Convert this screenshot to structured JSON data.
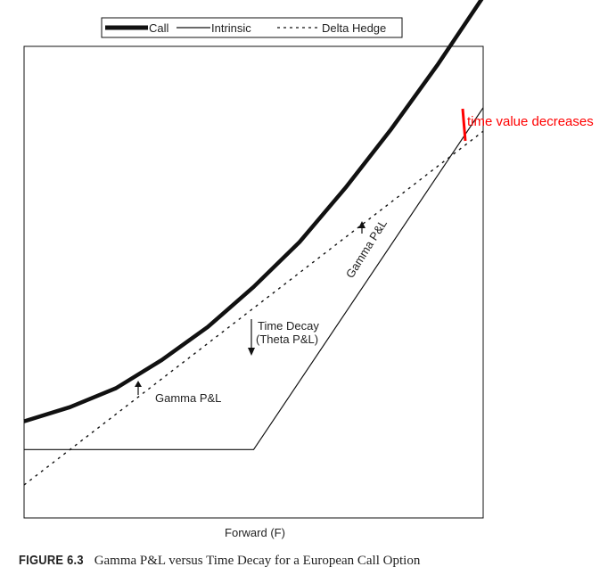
{
  "chart_data": {
    "type": "line",
    "title": "",
    "xlabel": "Forward (F)",
    "ylabel": "",
    "xlim": [
      0,
      100
    ],
    "ylim": [
      0,
      100
    ],
    "grid": false,
    "legend": {
      "placement": "top-center",
      "entries": [
        "Call",
        "Intrinsic",
        "Delta Hedge"
      ]
    },
    "series": [
      {
        "name": "Call",
        "style": "thick-solid",
        "x": [
          0,
          10,
          20,
          30,
          40,
          50,
          60,
          70,
          80,
          90,
          100
        ],
        "y": [
          20.5,
          23.5,
          27.5,
          33.5,
          40.5,
          49,
          58.5,
          70,
          82.5,
          96,
          110.5
        ]
      },
      {
        "name": "Intrinsic",
        "style": "thin-solid",
        "x": [
          0,
          50,
          100
        ],
        "y": [
          14.5,
          14.5,
          87
        ]
      },
      {
        "name": "Delta Hedge",
        "style": "dotted",
        "x": [
          0,
          100
        ],
        "y": [
          7,
          82
        ]
      }
    ],
    "annotations": [
      {
        "text": "Gamma P&L",
        "x": 28,
        "y": 28
      },
      {
        "text": "Time Decay",
        "x": 50,
        "y": 45
      },
      {
        "text": "(Theta P&L)",
        "x": 50,
        "y": 41
      },
      {
        "text": "Gamma P&L",
        "x": 73,
        "y": 58
      },
      {
        "text": "time value decreases",
        "x": 96,
        "y": 93,
        "color": "#ff0000"
      }
    ]
  },
  "caption": {
    "figure_label": "FIGURE 6.3",
    "text": "Gamma P&L versus Time Decay for a European Call Option"
  },
  "colors": {
    "ink": "#111111",
    "highlight": "#ff0000"
  }
}
